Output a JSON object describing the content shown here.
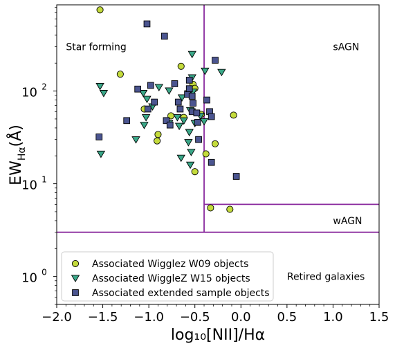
{
  "chart_data": {
    "type": "scatter",
    "xlabel": "log₁₀[NII]/Hα",
    "ylabel": "EW",
    "ylabel_sub": "Hα",
    "ylabel_unit": "(Å)",
    "xlim": [
      -2.0,
      1.5
    ],
    "ylim": [
      0.5,
      850
    ],
    "y_scale": "log",
    "x_ticks": [
      -2.0,
      -1.5,
      -1.0,
      -0.5,
      0.0,
      0.5,
      1.0,
      1.5
    ],
    "x_tick_labels": [
      "−2.0",
      "−1.5",
      "−1.0",
      "−0.5",
      "0.0",
      "0.5",
      "1.0",
      "1.5"
    ],
    "y_ticks": [
      1,
      10,
      100
    ],
    "y_tick_bases": [
      "10",
      "10",
      "10"
    ],
    "y_tick_exps": [
      "0",
      "1",
      "2"
    ],
    "grid": false,
    "legend_position": "lower-left",
    "colors": {
      "w09": "#c4db3c",
      "w15": "#3aa788",
      "ext": "#4b5590",
      "lines": "#8a2a9e",
      "edge": "#000000"
    },
    "region_lines": [
      {
        "type": "vertical",
        "x": -0.4,
        "y_from": 3,
        "y_to": 850
      },
      {
        "type": "horizontal",
        "y": 3,
        "x_from": -2.0,
        "x_to": 1.5
      },
      {
        "type": "horizontal",
        "y": 6,
        "x_from": -0.4,
        "x_to": 1.5
      }
    ],
    "region_labels": [
      {
        "text": "Star forming",
        "x": -1.9,
        "y": 300,
        "anchor": "start"
      },
      {
        "text": "sAGN",
        "x": 1.0,
        "y": 300,
        "anchor": "start"
      },
      {
        "text": "wAGN",
        "x": 1.0,
        "y": 4.0,
        "anchor": "start"
      },
      {
        "text": "Retired galaxies",
        "x": 0.5,
        "y": 1.0,
        "anchor": "start"
      }
    ],
    "series": [
      {
        "name": "Associated Wigglez W09 objects",
        "marker": "circle",
        "points": [
          [
            -1.53,
            750
          ],
          [
            -1.31,
            152
          ],
          [
            -1.05,
            64
          ],
          [
            -0.9,
            34
          ],
          [
            -0.91,
            29
          ],
          [
            -0.76,
            54
          ],
          [
            -0.65,
            185
          ],
          [
            -0.62,
            52
          ],
          [
            -0.52,
            118
          ],
          [
            -0.5,
            107
          ],
          [
            -0.43,
            56
          ],
          [
            -0.5,
            13.5
          ],
          [
            -0.38,
            21
          ],
          [
            -0.28,
            27
          ],
          [
            -0.08,
            55
          ],
          [
            -0.33,
            5.5
          ],
          [
            -0.12,
            5.3
          ]
        ]
      },
      {
        "name": "Associated WiggleZ W15 objects",
        "marker": "triangle",
        "points": [
          [
            -1.53,
            113
          ],
          [
            -1.49,
            95
          ],
          [
            -1.52,
            21
          ],
          [
            -1.14,
            30
          ],
          [
            -1.06,
            95
          ],
          [
            -1.02,
            82
          ],
          [
            -1.03,
            52
          ],
          [
            -1.05,
            43
          ],
          [
            -0.96,
            68
          ],
          [
            -0.89,
            110
          ],
          [
            -0.78,
            45
          ],
          [
            -0.78,
            101
          ],
          [
            -0.69,
            52
          ],
          [
            -0.64,
            85
          ],
          [
            -0.62,
            48
          ],
          [
            -0.67,
            42
          ],
          [
            -0.57,
            28
          ],
          [
            -0.56,
            36
          ],
          [
            -0.54,
            22
          ],
          [
            -0.55,
            62
          ],
          [
            -0.57,
            94
          ],
          [
            -0.53,
            140
          ],
          [
            -0.52,
            98
          ],
          [
            -0.5,
            45
          ],
          [
            -0.55,
            16
          ],
          [
            -0.65,
            19
          ],
          [
            -0.53,
            250
          ],
          [
            -0.39,
            165
          ],
          [
            -0.44,
            54
          ],
          [
            -0.4,
            47
          ],
          [
            -0.21,
            160
          ]
        ]
      },
      {
        "name": "Associated extended sample objects",
        "marker": "square",
        "points": [
          [
            -1.02,
            530
          ],
          [
            -0.83,
            390
          ],
          [
            -1.54,
            32
          ],
          [
            -1.24,
            48
          ],
          [
            -1.12,
            105
          ],
          [
            -0.98,
            115
          ],
          [
            -0.94,
            76
          ],
          [
            -1.01,
            64
          ],
          [
            -0.81,
            48
          ],
          [
            -0.77,
            43
          ],
          [
            -0.72,
            120
          ],
          [
            -0.66,
            64
          ],
          [
            -0.68,
            76
          ],
          [
            -0.58,
            92
          ],
          [
            -0.56,
            106
          ],
          [
            -0.56,
            131
          ],
          [
            -0.53,
            88
          ],
          [
            -0.52,
            74
          ],
          [
            -0.53,
            60
          ],
          [
            -0.48,
            58
          ],
          [
            -0.47,
            46
          ],
          [
            -0.46,
            30
          ],
          [
            -0.37,
            80
          ],
          [
            -0.34,
            60
          ],
          [
            -0.32,
            53
          ],
          [
            -0.28,
            215
          ],
          [
            -0.32,
            17
          ],
          [
            -0.05,
            12
          ]
        ]
      }
    ]
  }
}
